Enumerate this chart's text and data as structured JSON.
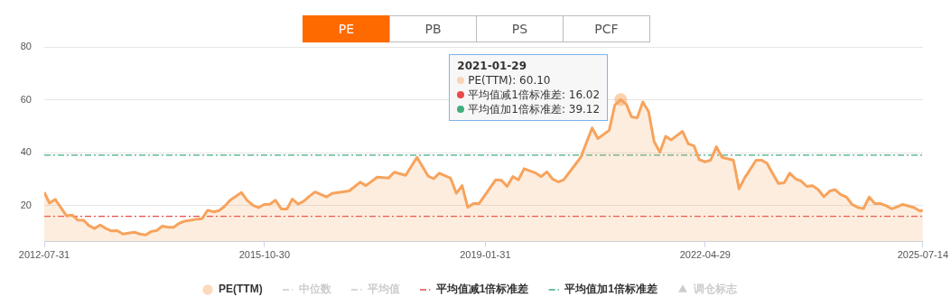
{
  "chart_data": {
    "type": "area",
    "x": [
      "2012-07-31",
      "2012-08-28",
      "2012-09-28",
      "2012-11-28",
      "2012-12-28",
      "2013-01-28",
      "2013-02-28",
      "2013-03-28",
      "2013-04-28",
      "2013-05-28",
      "2013-06-28",
      "2013-07-28",
      "2013-08-28",
      "2013-09-28",
      "2013-11-28",
      "2013-12-28",
      "2014-01-28",
      "2014-02-28",
      "2014-03-28",
      "2014-04-28",
      "2014-05-28",
      "2014-06-28",
      "2014-07-28",
      "2014-08-28",
      "2014-10-28",
      "2014-11-28",
      "2014-12-28",
      "2015-01-28",
      "2015-02-28",
      "2015-03-28",
      "2015-04-28",
      "2015-06-28",
      "2015-07-28",
      "2015-08-28",
      "2015-09-28",
      "2015-10-28",
      "2015-11-28",
      "2015-12-28",
      "2016-01-28",
      "2016-02-28",
      "2016-03-28",
      "2016-04-28",
      "2016-05-28",
      "2016-06-28",
      "2016-07-28",
      "2016-09-28",
      "2016-10-28",
      "2017-01-28",
      "2017-03-28",
      "2017-04-28",
      "2017-06-28",
      "2017-08-28",
      "2017-09-28",
      "2017-11-28",
      "2018-01-28",
      "2018-03-28",
      "2018-04-28",
      "2018-05-28",
      "2018-07-28",
      "2018-08-28",
      "2018-09-28",
      "2018-10-28",
      "2018-11-28",
      "2018-12-28",
      "2019-03-28",
      "2019-04-28",
      "2019-05-28",
      "2019-06-28",
      "2019-07-28",
      "2019-08-28",
      "2019-10-28",
      "2019-11-28",
      "2019-12-28",
      "2020-01-28",
      "2020-02-28",
      "2020-03-28",
      "2020-06-28",
      "2020-08-28",
      "2020-09-28",
      "2020-11-28",
      "2020-12-28",
      "2021-01-29",
      "2021-02-28",
      "2021-03-28",
      "2021-04-28",
      "2021-05-28",
      "2021-06-28",
      "2021-07-28",
      "2021-08-28",
      "2021-09-28",
      "2021-10-28",
      "2021-12-28",
      "2022-01-28",
      "2022-02-28",
      "2022-03-28",
      "2022-04-28",
      "2022-05-28",
      "2022-06-28",
      "2022-07-28",
      "2022-09-28",
      "2022-10-28",
      "2022-11-28",
      "2023-01-28",
      "2023-02-28",
      "2023-03-28",
      "2023-04-28",
      "2023-05-28",
      "2023-06-28",
      "2023-07-28",
      "2023-08-28",
      "2023-09-28",
      "2023-10-28",
      "2023-11-28",
      "2023-12-28",
      "2024-01-28",
      "2024-02-28",
      "2024-03-28",
      "2024-04-28",
      "2024-05-28",
      "2024-06-28",
      "2024-07-28",
      "2024-08-28",
      "2024-09-28",
      "2024-10-28",
      "2024-11-28",
      "2024-12-28",
      "2025-01-28",
      "2025-02-28",
      "2025-03-28",
      "2025-04-28",
      "2025-05-28",
      "2025-06-28",
      "2025-07-14"
    ],
    "series": [
      {
        "name": "PE(TTM)",
        "color": "#f7a35c",
        "values": [
          25.1,
          21.0,
          22.4,
          16.2,
          16.5,
          14.6,
          14.5,
          12.5,
          11.4,
          12.7,
          11.4,
          10.5,
          10.6,
          9.3,
          10.0,
          9.3,
          9.0,
          10.3,
          10.6,
          12.3,
          11.9,
          11.9,
          13.4,
          14.2,
          14.9,
          15.1,
          18.3,
          17.7,
          18.2,
          19.7,
          22.1,
          25.0,
          22.1,
          20.2,
          19.3,
          20.5,
          20.6,
          22.1,
          18.8,
          18.8,
          22.5,
          20.6,
          21.7,
          23.6,
          25.2,
          23.3,
          24.7,
          25.6,
          28.9,
          27.6,
          30.8,
          30.5,
          32.7,
          31.5,
          38.3,
          31.3,
          30.2,
          32.3,
          30.4,
          24.7,
          27.6,
          19.4,
          20.8,
          20.8,
          29.8,
          29.6,
          27.3,
          31.0,
          29.8,
          34.0,
          32.4,
          31.0,
          32.8,
          30.1,
          29.0,
          29.8,
          38.3,
          49.4,
          45.4,
          48.5,
          58.0,
          60.1,
          58.4,
          53.6,
          53.2,
          59.2,
          55.6,
          44.2,
          40.3,
          46.2,
          44.9,
          48.1,
          43.4,
          42.6,
          37.4,
          36.6,
          37.2,
          42.3,
          38.3,
          37.2,
          26.4,
          30.6,
          37.2,
          37.2,
          36.0,
          32.1,
          28.4,
          28.7,
          32.3,
          30.2,
          29.3,
          27.3,
          27.6,
          26.1,
          23.4,
          25.5,
          26.1,
          24.2,
          23.3,
          20.5,
          19.4,
          18.9,
          23.3,
          20.8,
          20.8,
          20.0,
          18.8,
          19.7,
          20.5,
          19.9,
          19.3,
          18.0,
          18.3
        ]
      },
      {
        "name": "中位数",
        "type": "line",
        "color": "#cccccc",
        "line_style": "dashed",
        "values": [
          null,
          null,
          null,
          null,
          null,
          null,
          null,
          null,
          null,
          null,
          null,
          null,
          null,
          null,
          null,
          null,
          null,
          null,
          null,
          null,
          null,
          null,
          null,
          null,
          null,
          null,
          null,
          null,
          null,
          null,
          null,
          null,
          null,
          null,
          null,
          null,
          null,
          null,
          null,
          null,
          null,
          null,
          null,
          null,
          null,
          null,
          null,
          null,
          null,
          null,
          null,
          null,
          null,
          null,
          null,
          null,
          null,
          null,
          null,
          null,
          null,
          null,
          null,
          null,
          null,
          null,
          null,
          null,
          null,
          null,
          null,
          null,
          null,
          null,
          null,
          null,
          null,
          null,
          null,
          null,
          null,
          null,
          null,
          null,
          null,
          null,
          null,
          null,
          null,
          null,
          null,
          null,
          null,
          null,
          null,
          null,
          null,
          null,
          null,
          null,
          null,
          null,
          null,
          null,
          null,
          null,
          null,
          null,
          null,
          null,
          null,
          null,
          null,
          null,
          null,
          null,
          null,
          null,
          null,
          null,
          null,
          null,
          null,
          null,
          null,
          null,
          null,
          null,
          null,
          null,
          null,
          null,
          null
        ]
      },
      {
        "name": "平均值",
        "type": "line",
        "color": "#cccccc",
        "line_style": "dashed",
        "values": [
          null,
          null,
          null,
          null,
          null,
          null,
          null,
          null,
          null,
          null,
          null,
          null,
          null,
          null,
          null,
          null,
          null,
          null,
          null,
          null,
          null,
          null,
          null,
          null,
          null,
          null,
          null,
          null,
          null,
          null,
          null,
          null,
          null,
          null,
          null,
          null,
          null,
          null,
          null,
          null,
          null,
          null,
          null,
          null,
          null,
          null,
          null,
          null,
          null,
          null,
          null,
          null,
          null,
          null,
          null,
          null,
          null,
          null,
          null,
          null,
          null,
          null,
          null,
          null,
          null,
          null,
          null,
          null,
          null,
          null,
          null,
          null,
          null,
          null,
          null,
          null,
          null,
          null,
          null,
          null,
          null,
          null,
          null,
          null,
          null,
          null,
          null,
          null,
          null,
          null,
          null,
          null,
          null,
          null,
          null,
          null,
          null,
          null,
          null,
          null,
          null,
          null,
          null,
          null,
          null,
          null,
          null,
          null,
          null,
          null,
          null,
          null,
          null,
          null,
          null,
          null,
          null,
          null,
          null,
          null,
          null,
          null,
          null,
          null,
          null,
          null,
          null,
          null,
          null,
          null,
          null,
          null,
          null
        ]
      },
      {
        "name": "调仓标志",
        "type": "scatter",
        "color": "#cccccc",
        "marker": "triangle",
        "values": [
          null,
          null,
          null,
          null,
          null,
          null,
          null,
          null,
          null,
          null,
          null,
          null,
          null,
          null,
          null,
          null,
          null,
          null,
          null,
          null,
          null,
          null,
          null,
          null,
          null,
          null,
          null,
          null,
          null,
          null,
          null,
          null,
          null,
          null,
          null,
          null,
          null,
          null,
          null,
          null,
          null,
          null,
          null,
          null,
          null,
          null,
          null,
          null,
          null,
          null,
          null,
          null,
          null,
          null,
          null,
          null,
          null,
          null,
          null,
          null,
          null,
          null,
          null,
          null,
          null,
          null,
          null,
          null,
          null,
          null,
          null,
          null,
          null,
          null,
          null,
          null,
          null,
          null,
          null,
          null,
          null,
          null,
          null,
          null,
          null,
          null,
          null,
          null,
          null,
          null,
          null,
          null,
          null,
          null,
          null,
          null,
          null,
          null,
          null,
          null,
          null,
          null,
          null,
          null,
          null,
          null,
          null,
          null,
          null,
          null,
          null,
          null,
          null,
          null,
          null,
          null,
          null,
          null,
          null,
          null,
          null,
          null,
          null,
          null,
          null,
          null,
          null,
          null,
          null,
          null,
          null,
          null,
          null
        ]
      }
    ],
    "ref_lines": [
      {
        "axis": "y",
        "value": 16.02,
        "label": "平均值减1倍标准差",
        "color": "#e84a4a",
        "line_style": "dashed"
      },
      {
        "axis": "y",
        "value": 39.12,
        "label": "平均值加1倍标准差",
        "color": "#3fae7c",
        "line_style": "dashed"
      }
    ],
    "xlim": [
      "2012-07-31",
      "2025-07-14"
    ],
    "xticks": [
      "2012-07-31",
      "2015-10-30",
      "2019-01-31",
      "2022-04-29",
      "2025-07-14"
    ],
    "ylim": [
      6.4,
      80
    ],
    "yticks": [
      20,
      40,
      60,
      80
    ],
    "grid": "y",
    "legend": "bottom",
    "marker": "none",
    "annotations": [
      "PE",
      "PB",
      "PS",
      "PCF",
      {
        "text": "2021-01-29\nPE(TTM): 60.10\n平均值减1倍标准差: 16.02\n平均值加1倍标准差: 39.12",
        "x": "2021-01-29",
        "y": 60.1
      }
    ]
  }
}
